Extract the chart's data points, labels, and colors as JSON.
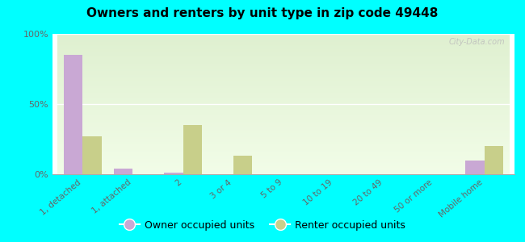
{
  "title": "Owners and renters by unit type in zip code 49448",
  "categories": [
    "1, detached",
    "1, attached",
    "2",
    "3 or 4",
    "5 to 9",
    "10 to 19",
    "20 to 49",
    "50 or more",
    "Mobile home"
  ],
  "owner_values": [
    85,
    4,
    1,
    0,
    0,
    0,
    0,
    0,
    10
  ],
  "renter_values": [
    27,
    0,
    35,
    13,
    0,
    0,
    0,
    0,
    20
  ],
  "owner_color": "#c9a8d4",
  "renter_color": "#c8cf8a",
  "outer_bg": "#00ffff",
  "ylim": [
    0,
    100
  ],
  "yticks": [
    0,
    50,
    100
  ],
  "ytick_labels": [
    "0%",
    "50%",
    "100%"
  ],
  "bar_width": 0.38,
  "legend_owner": "Owner occupied units",
  "legend_renter": "Renter occupied units",
  "watermark": "City-Data.com"
}
